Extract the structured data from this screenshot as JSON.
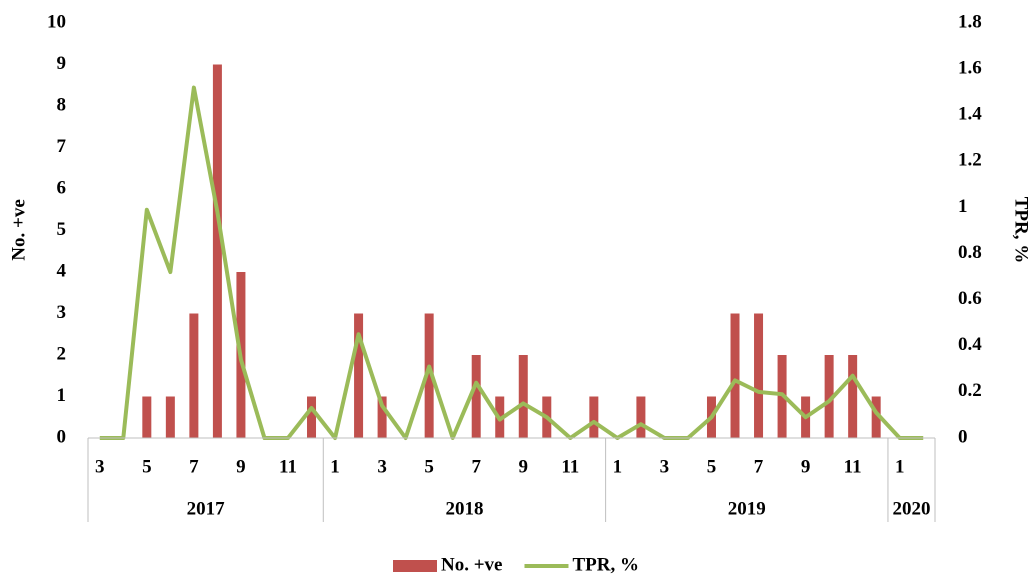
{
  "chart_data": {
    "type": "bar-line",
    "categories": [
      "3",
      null,
      "5",
      null,
      "7",
      null,
      "9",
      null,
      "11",
      null,
      "1",
      null,
      "3",
      null,
      "5",
      null,
      "7",
      null,
      "9",
      null,
      "11",
      null,
      "1",
      null,
      "3",
      null,
      "5",
      null,
      "7",
      null,
      "9",
      null,
      "11",
      null,
      "1",
      null
    ],
    "groups": [
      {
        "label": "2017",
        "count": 10
      },
      {
        "label": "2018",
        "count": 12
      },
      {
        "label": "2019",
        "count": 12
      },
      {
        "label": "2020",
        "count": 2
      }
    ],
    "series": [
      {
        "name": "No. +ve",
        "type": "bar",
        "color": "#c0504d",
        "axis": "y",
        "values": [
          0,
          0,
          1,
          1,
          3,
          9,
          4,
          0,
          0,
          1,
          0,
          3,
          1,
          0,
          3,
          0,
          2,
          1,
          2,
          1,
          0,
          1,
          0,
          1,
          0,
          0,
          1,
          3,
          3,
          2,
          1,
          2,
          2,
          1,
          0,
          0
        ]
      },
      {
        "name": "TPR, %",
        "type": "line",
        "color": "#9bbb59",
        "axis": "y2",
        "values": [
          0,
          0,
          0.99,
          0.72,
          1.52,
          0.98,
          0.34,
          0,
          0,
          0.13,
          0,
          0.45,
          0.14,
          0,
          0.31,
          0,
          0.24,
          0.08,
          0.15,
          0.09,
          0,
          0.07,
          0,
          0.06,
          0,
          0,
          0.09,
          0.25,
          0.2,
          0.19,
          0.09,
          0.16,
          0.27,
          0.11,
          0,
          0
        ]
      }
    ],
    "ylabel": "No. +ve",
    "y2label": "TPR, %",
    "ylim": [
      0,
      10
    ],
    "yticks": [
      0,
      1,
      2,
      3,
      4,
      5,
      6,
      7,
      8,
      9,
      10
    ],
    "y2lim": [
      0,
      1.8
    ],
    "y2ticks": [
      0,
      0.2,
      0.4,
      0.6,
      0.8,
      1,
      1.2,
      1.4,
      1.6,
      1.8
    ],
    "legend": "bottom"
  }
}
